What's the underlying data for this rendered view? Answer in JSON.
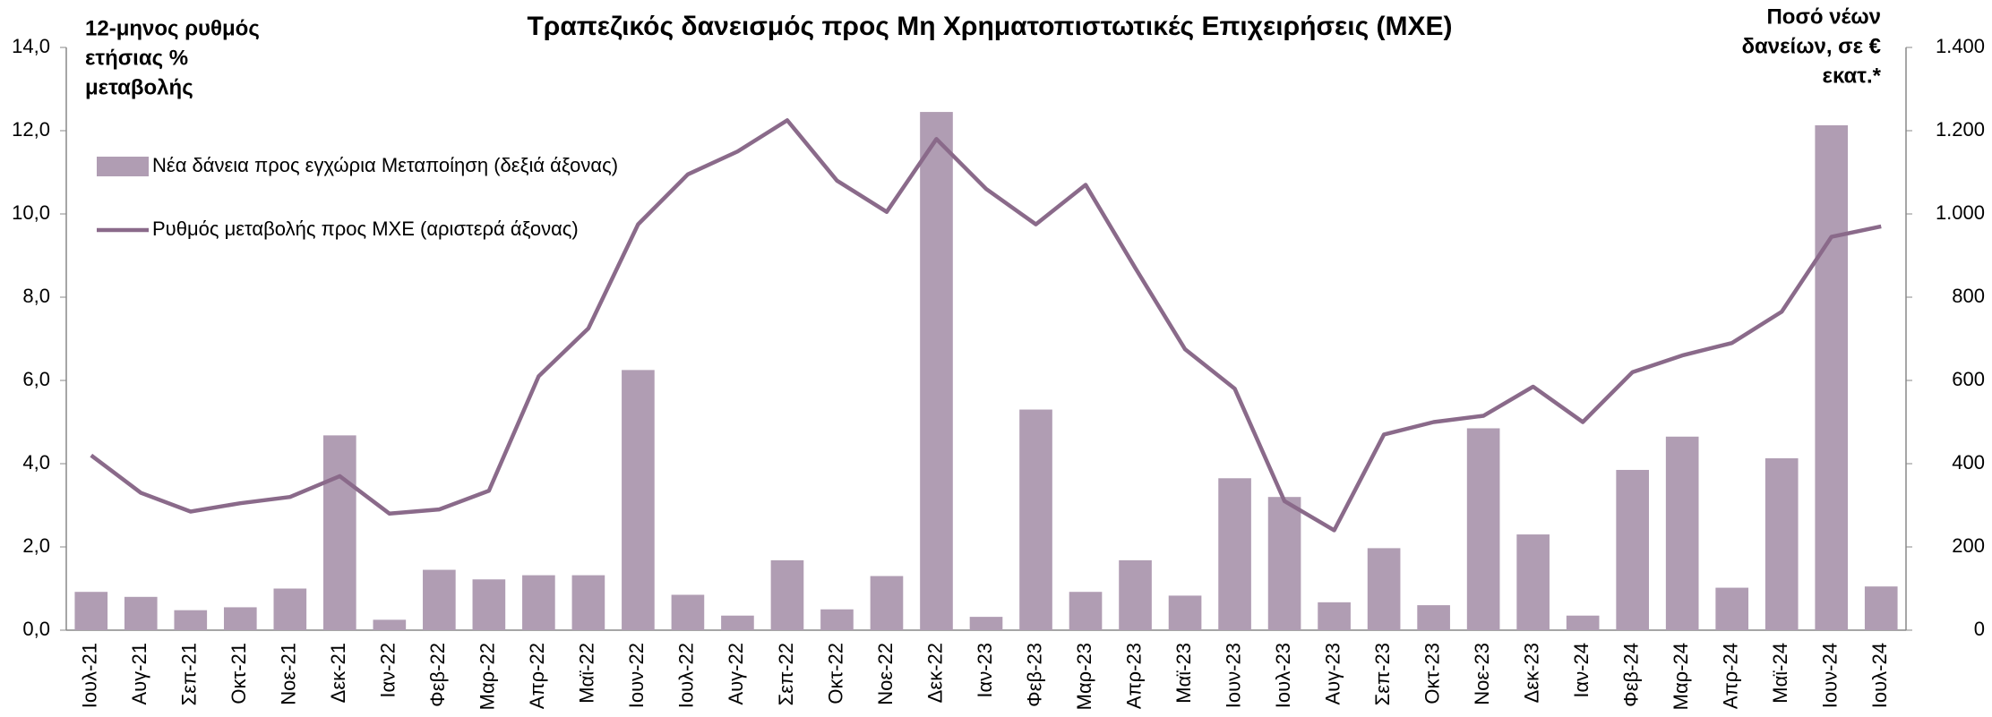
{
  "chart_data": {
    "type": "bar_line",
    "title": "Τραπεζικός δανεισμός προς Μη Χρηματοπιστωτικές Επιχειρήσεις (ΜΧΕ)",
    "y_label": [
      "12-μηνος ρυθμός",
      "ετήσιας %",
      "μεταβολής"
    ],
    "y2_label": [
      "Ποσό νέων",
      "δανείων, σε €",
      "εκατ.*"
    ],
    "categories": [
      "Ιουλ-21",
      "Αυγ-21",
      "Σεπ-21",
      "Οκτ-21",
      "Νοε-21",
      "Δεκ-21",
      "Ιαν-22",
      "Φεβ-22",
      "Μαρ-22",
      "Απρ-22",
      "Μαϊ-22",
      "Ιουν-22",
      "Ιουλ-22",
      "Αυγ-22",
      "Σεπ-22",
      "Οκτ-22",
      "Νοε-22",
      "Δεκ-22",
      "Ιαν-23",
      "Φεβ-23",
      "Μαρ-23",
      "Απρ-23",
      "Μαϊ-23",
      "Ιουν-23",
      "Ιουλ-23",
      "Αυγ-23",
      "Σεπ-23",
      "Οκτ-23",
      "Νοε-23",
      "Δεκ-23",
      "Ιαν-24",
      "Φεβ-24",
      "Μαρ-24",
      "Απρ-24",
      "Μαϊ-24",
      "Ιουν-24",
      "Ιουλ-24"
    ],
    "series": [
      {
        "name": "Νέα δάνεια προς εγχώρια Μεταποίηση (δεξιά άξονας)",
        "color": "#b09db3",
        "kind": "bar",
        "axis": "y2",
        "values": [
          92,
          80,
          48,
          55,
          100,
          468,
          25,
          145,
          122,
          132,
          132,
          625,
          85,
          35,
          168,
          50,
          130,
          1245,
          32,
          530,
          92,
          168,
          83,
          365,
          320,
          67,
          197,
          60,
          485,
          230,
          35,
          385,
          465,
          102,
          413,
          1213,
          105
        ]
      },
      {
        "name": "Ρυθμός μεταβολής προς ΜΧΕ (αριστερά άξονας)",
        "color": "#8a6a8a",
        "kind": "line",
        "values": [
          4.2,
          3.3,
          2.85,
          3.05,
          3.2,
          3.7,
          2.8,
          2.9,
          3.35,
          6.1,
          7.25,
          9.75,
          10.95,
          11.5,
          12.25,
          10.8,
          10.05,
          11.8,
          10.6,
          9.75,
          10.7,
          8.7,
          6.75,
          5.8,
          3.1,
          2.4,
          4.7,
          5.0,
          5.15,
          5.85,
          5.0,
          6.2,
          6.6,
          6.9,
          7.65,
          9.45,
          9.7
        ]
      }
    ],
    "ylim": [
      0,
      14
    ],
    "yticks": [
      {
        "value": 0,
        "label": "0,0"
      },
      {
        "value": 2,
        "label": "2,0"
      },
      {
        "value": 4,
        "label": "4,0"
      },
      {
        "value": 6,
        "label": "6,0"
      },
      {
        "value": 8,
        "label": "8,0"
      },
      {
        "value": 10,
        "label": "10,0"
      },
      {
        "value": 12,
        "label": "12,0"
      },
      {
        "value": 14,
        "label": "14,0"
      }
    ],
    "y2lim": [
      0,
      1400
    ],
    "y2ticks": [
      0,
      200,
      400,
      600,
      800,
      {
        "value": 1000,
        "label": "1.000"
      },
      {
        "value": 1200,
        "label": "1.200"
      },
      {
        "value": 1400,
        "label": "1.400"
      }
    ],
    "grid": false,
    "legend": "upper left"
  }
}
